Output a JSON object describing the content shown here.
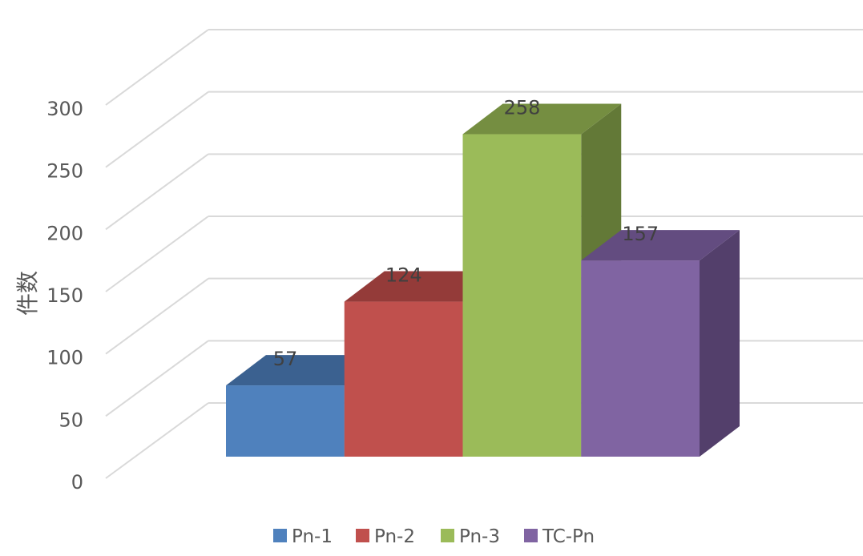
{
  "chart_data": {
    "type": "bar",
    "ylabel": "件数",
    "ylim": [
      0,
      300
    ],
    "y_ticks": [
      0,
      50,
      100,
      150,
      200,
      250,
      300
    ],
    "grid": true,
    "legend_position": "bottom",
    "series": [
      {
        "name": "Pn-1",
        "value": 57,
        "label": "57",
        "color": "#4F81BD",
        "top_color": "#3B6190",
        "side_color": "#3B6190"
      },
      {
        "name": "Pn-2",
        "value": 124,
        "label": "124",
        "color": "#C0504D",
        "top_color": "#943B39",
        "side_color": "#943B39"
      },
      {
        "name": "Pn-3",
        "value": 258,
        "label": "258",
        "color": "#9BBB59",
        "top_color": "#758E41",
        "side_color": "#637937"
      },
      {
        "name": "TC-Pn",
        "value": 157,
        "label": "157",
        "color": "#8064A2",
        "top_color": "#634C80",
        "side_color": "#533F6B"
      }
    ]
  }
}
